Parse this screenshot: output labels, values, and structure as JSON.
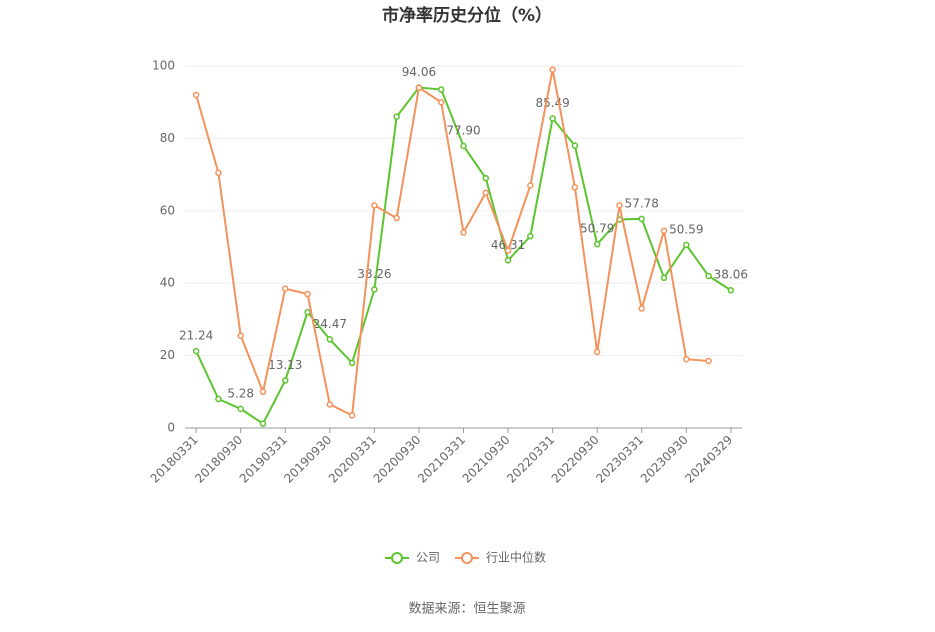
{
  "chart_data": {
    "type": "line",
    "title": "市净率历史分位（%）",
    "categories": [
      "20180331",
      null,
      "20180930",
      null,
      "20190331",
      null,
      "20190930",
      null,
      "20200331",
      null,
      "20200930",
      null,
      "20210331",
      null,
      "20210930",
      null,
      "20220331",
      null,
      "20220930",
      null,
      "20230331",
      null,
      "20230930",
      null,
      "20240329"
    ],
    "series": [
      {
        "name": "公司",
        "color": "#5cc42f",
        "values": [
          21.24,
          8,
          5.28,
          1.2,
          13.13,
          32,
          24.47,
          18,
          38.26,
          86,
          94.06,
          93.5,
          77.9,
          69,
          46.31,
          53,
          85.49,
          78,
          50.79,
          57.6,
          57.78,
          41.5,
          50.59,
          42,
          38.06
        ],
        "value_labels": [
          "21.24",
          null,
          "5.28",
          null,
          "13.13",
          null,
          "24.47",
          null,
          "38.26",
          null,
          "94.06",
          null,
          "77.90",
          null,
          "46.31",
          null,
          "85.49",
          null,
          "50.79",
          null,
          "57.78",
          null,
          "50.59",
          null,
          "38.06"
        ]
      },
      {
        "name": "行业中位数",
        "color": "#f4925c",
        "values": [
          92,
          70.5,
          25.5,
          10,
          38.5,
          37,
          6.5,
          3.5,
          61.5,
          58,
          94,
          90,
          54,
          65,
          49,
          67,
          99,
          66.5,
          21,
          61.5,
          33,
          54.5,
          19,
          18.5,
          null
        ]
      }
    ],
    "ylim": [
      0,
      100
    ],
    "yticks": [
      0,
      20,
      40,
      60,
      80,
      100
    ],
    "grid": true,
    "legend": "bottom",
    "source": "数据来源：恒生聚源"
  }
}
